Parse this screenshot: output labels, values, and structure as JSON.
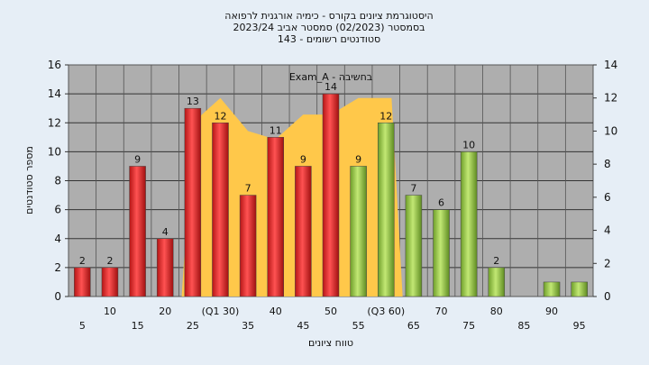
{
  "chart_data": {
    "type": "bar",
    "title_lines": [
      "היסטוגרמת ציונים בקורס - כימיה אורגנית לרפואה",
      "בסמסטר  (02/2023)  סמסטר אביב 2023/24",
      "143 - סטודנטים רשומים"
    ],
    "xlabel": "טווח ציונים",
    "ylabel": "מספר סטודנטים",
    "ylim": [
      0,
      16
    ],
    "y_ticks": [
      0,
      2,
      4,
      6,
      8,
      10,
      12,
      14,
      16
    ],
    "y2lim": [
      0,
      14
    ],
    "y2_ticks": [
      0,
      2,
      4,
      6,
      8,
      10,
      12,
      14
    ],
    "annotation": "Exam_A - בחשיבה",
    "x_tick_labels_row1": [
      "10",
      "20",
      "(Q1 30)",
      "40",
      "50",
      "(Q3 60)",
      "70",
      "80",
      "90"
    ],
    "x_tick_labels_row2": [
      "5",
      "15",
      "25",
      "35",
      "45",
      "55",
      "65",
      "75",
      "85",
      "95"
    ],
    "categories": [
      "5",
      "10",
      "15",
      "20",
      "25",
      "30",
      "35",
      "40",
      "45",
      "50",
      "55",
      "60",
      "65",
      "70",
      "75",
      "80",
      "85",
      "90",
      "95"
    ],
    "values": [
      2,
      2,
      9,
      4,
      13,
      12,
      7,
      11,
      9,
      14,
      9,
      12,
      7,
      6,
      10,
      2,
      0,
      1,
      1
    ],
    "value_labels": [
      "2",
      "2",
      "9",
      "4",
      "13",
      "12",
      "7",
      "11",
      "9",
      "14",
      "9",
      "12",
      "7",
      "6",
      "10",
      "2",
      "",
      "",
      ""
    ],
    "bar_groups": [
      "red",
      "red",
      "red",
      "red",
      "red",
      "red",
      "red",
      "red",
      "red",
      "red",
      "green",
      "green",
      "green",
      "green",
      "green",
      "green",
      "green",
      "green",
      "green"
    ],
    "range_area": {
      "categories": [
        "25",
        "30",
        "35",
        "40",
        "45",
        "50",
        "55",
        "60"
      ],
      "values": [
        10.5,
        12,
        10,
        9.5,
        11,
        11,
        12,
        12
      ]
    },
    "grid": true,
    "legend": "none",
    "colors": {
      "red_bar": "#e03030",
      "green_bar": "#9ccf50",
      "range_area": "#ffc84a",
      "plot_background": "#aeaeae",
      "figure_background": "#e6eef6"
    }
  }
}
